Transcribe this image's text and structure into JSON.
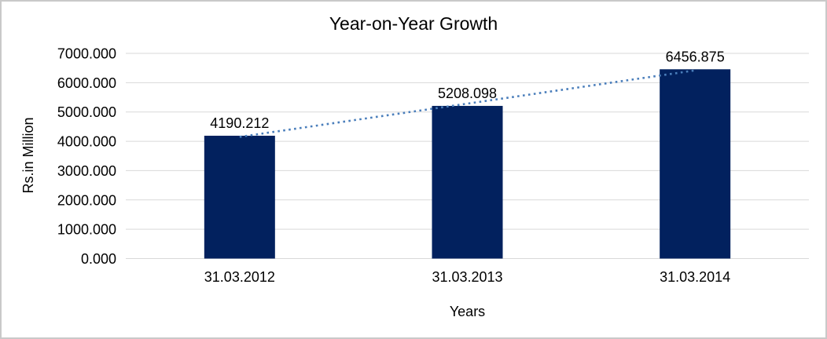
{
  "chart_data": {
    "type": "bar",
    "title": "Year-on-Year Growth",
    "xlabel": "Years",
    "ylabel": "Rs.in Million",
    "categories": [
      "31.03.2012",
      "31.03.2013",
      "31.03.2014"
    ],
    "values": [
      4190.212,
      5208.098,
      6456.875
    ],
    "value_labels": [
      "4190.212",
      "5208.098",
      "6456.875"
    ],
    "y_ticks": [
      {
        "value": 0,
        "label": "0.000"
      },
      {
        "value": 1000,
        "label": "1000.000"
      },
      {
        "value": 2000,
        "label": "2000.000"
      },
      {
        "value": 3000,
        "label": "3000.000"
      },
      {
        "value": 4000,
        "label": "4000.000"
      },
      {
        "value": 5000,
        "label": "5000.000"
      },
      {
        "value": 6000,
        "label": "6000.000"
      },
      {
        "value": 7000,
        "label": "7000.000"
      }
    ],
    "ylim": [
      0,
      7000
    ],
    "grid": true,
    "legend": false,
    "trendline": {
      "type": "linear",
      "style": "dotted",
      "color": "#4A7EBB"
    },
    "colors": {
      "bar": "#02215E",
      "gridline": "#D9D9D9",
      "text": "#000000",
      "border": "#C9C9C9",
      "background": "#FFFFFF"
    }
  }
}
